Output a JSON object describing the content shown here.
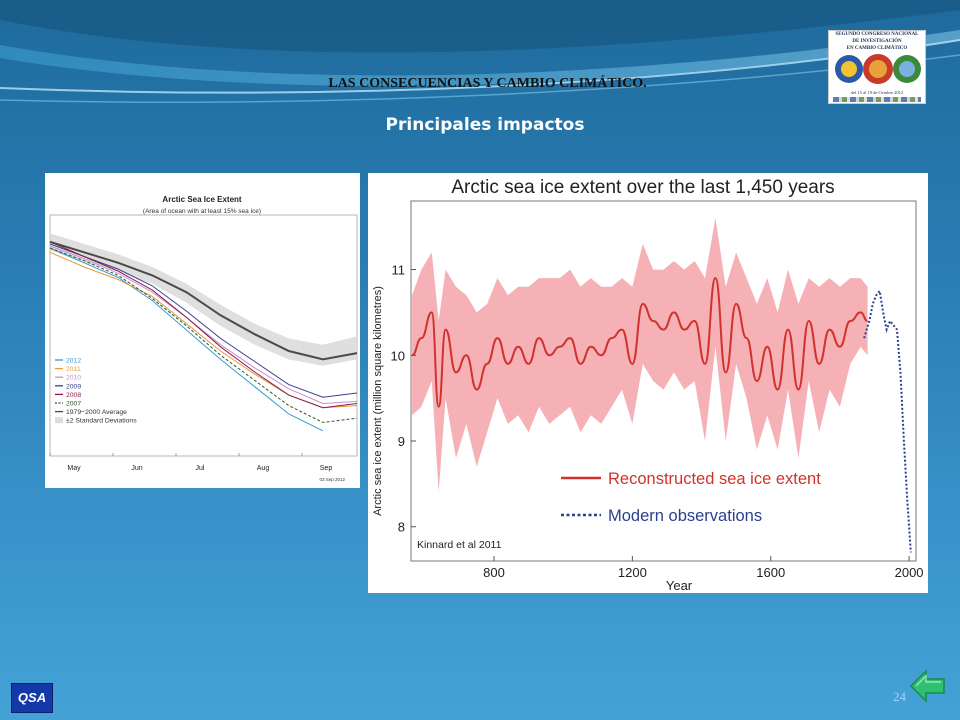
{
  "slide": {
    "title": "LAS CONSECUENCIAS Y CAMBIO CLIMÁTICO.",
    "subtitle": "Principales impactos",
    "page_number": "24",
    "badge": "QSA",
    "logo": {
      "lines": [
        "SEGUNDO CONGRESO NACIONAL",
        "DE INVESTIGACIÓN",
        "EN CAMBIO CLIMÁTICO"
      ],
      "dates": "del 15 al 19 de Octubre 2012"
    },
    "icons": {
      "back": "back-arrow-icon",
      "badge": "qsa-logo-icon"
    },
    "colors": {
      "background": "#2a7fb6",
      "arrow": "#2fbf71"
    }
  },
  "chart_data": [
    {
      "type": "line",
      "title": "Arctic Sea Ice Extent",
      "subtitle": "(Area of ocean with at least 15% sea ice)",
      "categories": [
        "May",
        "Jun",
        "Jul",
        "Aug",
        "Sep"
      ],
      "date_stamp": "03 Sep 2012",
      "x": [
        0,
        0.5,
        1,
        1.5,
        2,
        2.5,
        3,
        3.5,
        4,
        4.5
      ],
      "band": {
        "name": "±2 Standard Deviations",
        "lower": [
          12.8,
          12.2,
          11.8,
          11.2,
          10.3,
          9.2,
          8.3,
          7.6,
          7.3,
          7.6
        ],
        "upper": [
          13.6,
          13.1,
          12.6,
          12.0,
          11.2,
          10.2,
          9.3,
          8.6,
          8.3,
          8.7
        ]
      },
      "series": [
        {
          "name": "2012",
          "color": "#3a9bd5",
          "style": "solid",
          "values": [
            12.9,
            12.2,
            11.5,
            10.4,
            9.0,
            7.6,
            6.3,
            5.0,
            4.2,
            null
          ]
        },
        {
          "name": "2011",
          "color": "#e59b3a",
          "style": "solid",
          "values": [
            12.7,
            12.0,
            11.4,
            10.6,
            9.3,
            8.0,
            6.9,
            5.9,
            5.3,
            5.4
          ]
        },
        {
          "name": "2010",
          "color": "#c78fd4",
          "style": "solid",
          "values": [
            13.0,
            12.4,
            11.7,
            10.8,
            9.6,
            8.3,
            7.2,
            6.2,
            5.5,
            5.6
          ]
        },
        {
          "name": "2009",
          "color": "#3a3f8f",
          "style": "solid",
          "values": [
            13.1,
            12.5,
            11.9,
            11.1,
            9.9,
            8.6,
            7.5,
            6.4,
            5.8,
            6.0
          ]
        },
        {
          "name": "2008",
          "color": "#8b1a4a",
          "style": "solid",
          "values": [
            13.2,
            12.5,
            11.8,
            10.9,
            9.6,
            8.2,
            7.0,
            5.9,
            5.3,
            5.5
          ]
        },
        {
          "name": "2007",
          "color": "#2a5a2a",
          "style": "dashed",
          "values": [
            12.9,
            12.3,
            11.6,
            10.5,
            9.2,
            7.8,
            6.6,
            5.4,
            4.6,
            4.8
          ]
        },
        {
          "name": "1979−2000 Average",
          "color": "#4a4a4a",
          "style": "solid",
          "values": [
            13.2,
            12.7,
            12.2,
            11.6,
            10.8,
            9.7,
            8.8,
            8.0,
            7.6,
            7.9
          ]
        }
      ],
      "ylim": [
        3,
        14
      ],
      "legend_position": "bottom-left"
    },
    {
      "type": "line",
      "title": "Arctic sea ice extent over the last 1,450 years",
      "xlabel": "Year",
      "ylabel": "Arctic sea ice extent (million square kilometres)",
      "xlim": [
        560,
        2020
      ],
      "ylim": [
        7.6,
        11.8
      ],
      "xticks": [
        800,
        1200,
        1600,
        2000
      ],
      "yticks": [
        8,
        9,
        10,
        11
      ],
      "source_label": "Kinnard et al 2011",
      "legend_position": "lower-center",
      "series": [
        {
          "name": "Reconstructed sea ice extent",
          "color": "#d2322d",
          "x": [
            563,
            590,
            620,
            640,
            660,
            690,
            720,
            750,
            780,
            810,
            840,
            870,
            900,
            930,
            960,
            990,
            1020,
            1050,
            1080,
            1110,
            1140,
            1170,
            1200,
            1230,
            1260,
            1290,
            1320,
            1350,
            1380,
            1410,
            1440,
            1470,
            1500,
            1530,
            1560,
            1590,
            1620,
            1650,
            1680,
            1710,
            1740,
            1770,
            1800,
            1830,
            1860,
            1880
          ],
          "values": [
            10.0,
            10.2,
            10.5,
            9.4,
            10.3,
            9.8,
            10.0,
            9.6,
            9.9,
            10.2,
            9.9,
            10.1,
            9.9,
            10.2,
            10.0,
            10.1,
            10.2,
            9.9,
            10.1,
            10.0,
            10.2,
            10.3,
            9.9,
            10.6,
            10.4,
            10.3,
            10.5,
            10.3,
            10.4,
            9.9,
            10.9,
            9.8,
            10.6,
            10.2,
            9.7,
            10.1,
            9.6,
            10.3,
            9.6,
            10.4,
            9.9,
            10.3,
            10.1,
            10.4,
            10.5,
            10.4
          ],
          "upper": [
            10.7,
            11.0,
            11.2,
            10.4,
            11.0,
            10.8,
            10.7,
            10.5,
            10.6,
            10.9,
            10.7,
            10.8,
            10.8,
            10.9,
            10.9,
            10.9,
            11.0,
            10.8,
            10.9,
            10.8,
            10.8,
            10.9,
            10.8,
            11.3,
            11.0,
            11.0,
            11.1,
            11.0,
            11.1,
            10.9,
            11.6,
            10.8,
            11.2,
            10.9,
            10.6,
            10.9,
            10.5,
            11.0,
            10.6,
            10.9,
            10.8,
            10.9,
            10.8,
            10.9,
            10.9,
            10.8
          ],
          "lower": [
            9.3,
            9.4,
            9.7,
            8.4,
            9.5,
            8.8,
            9.2,
            8.7,
            9.1,
            9.5,
            9.2,
            9.3,
            9.1,
            9.4,
            9.2,
            9.3,
            9.4,
            9.1,
            9.3,
            9.2,
            9.4,
            9.6,
            9.2,
            9.9,
            9.7,
            9.6,
            9.8,
            9.6,
            9.7,
            9.0,
            10.1,
            9.0,
            9.9,
            9.5,
            8.9,
            9.3,
            8.9,
            9.6,
            8.8,
            9.7,
            9.1,
            9.6,
            9.4,
            9.9,
            10.1,
            10.0
          ]
        },
        {
          "name": "Modern observations",
          "color": "#2a3f8f",
          "style": "dotted",
          "x": [
            1870,
            1885,
            1895,
            1905,
            1915,
            1925,
            1935,
            1945,
            1955,
            1965,
            1975,
            1985,
            1995,
            2005
          ],
          "values": [
            10.2,
            10.4,
            10.6,
            10.7,
            10.75,
            10.5,
            10.3,
            10.4,
            10.35,
            10.3,
            9.8,
            9.0,
            8.3,
            7.7
          ]
        }
      ]
    }
  ]
}
